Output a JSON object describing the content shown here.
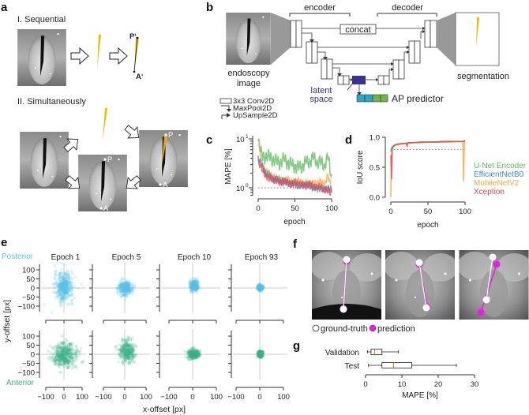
{
  "panel_labels": {
    "a": "a",
    "b": "b",
    "c": "c",
    "d": "d",
    "e": "e",
    "f": "f",
    "g": "g"
  },
  "panel_a": {
    "sequential_title": "I. Sequential",
    "simultaneous_title": "II. Simultaneously",
    "p_prime": "P‘",
    "a_prime": "A‘",
    "p": "P",
    "a": "A"
  },
  "panel_b": {
    "encoder": "encoder",
    "decoder": "decoder",
    "concat": "concat",
    "input_label_1": "endoscopy",
    "input_label_2": "image",
    "output_label": "segmentation",
    "latent_1": "latent",
    "latent_2": "space",
    "ap_predictor": "AP predictor",
    "legend": [
      "3x3 Conv2D",
      "MaxPool2D",
      "UpSample2D"
    ],
    "colors": {
      "latent": "#3b2f8f",
      "ap_a": "#29a8c8",
      "ap_b": "#6ab74a",
      "segmentation": "#f5b800"
    }
  },
  "colors": {
    "unet": "#5cb85c",
    "efficientnet": "#3a8fd0",
    "mobilenet": "#f7a34a",
    "xception": "#e2474b",
    "posterior": "#5bc3eb",
    "anterior": "#3cb08a",
    "prediction": "#e61ee6"
  },
  "chart_data": [
    {
      "id": "c",
      "type": "line",
      "xlabel": "epoch",
      "ylabel": "MAPE [%]",
      "yscale": "log",
      "ylim": [
        0.6,
        10
      ],
      "xlim": [
        0,
        100
      ],
      "xticks": [
        "0",
        "50",
        "100"
      ],
      "yticks": [
        {
          "value": 10,
          "base": "10",
          "exp": "1"
        },
        {
          "value": 1,
          "base": "10",
          "exp": "0"
        }
      ],
      "reference_line": 1,
      "x": [
        0,
        5,
        10,
        15,
        20,
        25,
        30,
        35,
        40,
        45,
        50,
        55,
        60,
        65,
        70,
        75,
        80,
        85,
        90,
        95,
        100
      ],
      "series": [
        {
          "name": "U-Net Encoder",
          "color_key": "unet",
          "values": [
            9,
            5,
            4,
            5,
            3.5,
            4,
            3,
            4.5,
            3,
            3.5,
            2.5,
            3,
            2.5,
            4,
            3,
            5,
            3,
            4,
            2.5,
            5,
            1.5
          ]
        },
        {
          "name": "EfficientNetB0",
          "color_key": "efficientnet",
          "values": [
            4,
            3,
            2,
            1.8,
            1.5,
            1.5,
            1.4,
            1.3,
            1.3,
            1.2,
            1.2,
            1.1,
            1.1,
            1.2,
            1.1,
            1.0,
            1.0,
            1.0,
            0.9,
            1.0,
            0.9
          ]
        },
        {
          "name": "MobileNetV2",
          "color_key": "mobilenet",
          "values": [
            9,
            3,
            2.2,
            2,
            1.7,
            1.6,
            1.5,
            1.4,
            1.5,
            1.3,
            1.3,
            1.4,
            1.2,
            1.3,
            1.2,
            1.3,
            1.2,
            1.4,
            1.1,
            1.8,
            1.0
          ]
        },
        {
          "name": "Xception",
          "color_key": "xception",
          "values": [
            3.5,
            2.5,
            1.8,
            1.6,
            1.5,
            1.4,
            1.3,
            1.4,
            1.3,
            1.2,
            1.3,
            1.2,
            1.2,
            1.1,
            1.2,
            1.1,
            1.0,
            1.1,
            0.9,
            0.9,
            0.8
          ]
        }
      ]
    },
    {
      "id": "d",
      "type": "line",
      "xlabel": "epoch",
      "ylabel": "IoU score",
      "ylim": [
        0,
        1
      ],
      "xlim": [
        0,
        100
      ],
      "xticks": [
        "0",
        "50",
        "100"
      ],
      "yticks": [
        "0.0",
        "0.5",
        "1.0"
      ],
      "reference_line": 0.8,
      "legend": "right",
      "x": [
        0,
        1,
        2,
        5,
        10,
        20,
        22,
        23,
        30,
        40,
        50,
        60,
        70,
        80,
        90,
        97,
        98,
        99,
        100
      ],
      "series": [
        {
          "name": "U-Net Encoder",
          "color_key": "unet",
          "values": [
            0.75,
            0.8,
            0.83,
            0.86,
            0.88,
            0.9,
            0.9,
            0.9,
            0.91,
            0.91,
            0.92,
            0.92,
            0.92,
            0.93,
            0.93,
            0.93,
            0.93,
            0.93,
            0.93
          ]
        },
        {
          "name": "EfficientNetB0",
          "color_key": "efficientnet",
          "values": [
            0.78,
            0.82,
            0.84,
            0.87,
            0.89,
            0.9,
            0.9,
            0.91,
            0.91,
            0.92,
            0.92,
            0.92,
            0.93,
            0.93,
            0.93,
            0.93,
            0.93,
            0.94,
            0.94
          ]
        },
        {
          "name": "MobileNetV2",
          "color_key": "mobilenet",
          "values": [
            0.0,
            0.75,
            0.82,
            0.86,
            0.88,
            0.9,
            0.9,
            0.9,
            0.91,
            0.91,
            0.92,
            0.92,
            0.92,
            0.92,
            0.93,
            0.93,
            0.27,
            0.9,
            0.93
          ]
        },
        {
          "name": "Xception",
          "color_key": "xception",
          "values": [
            0.7,
            0.3,
            0.83,
            0.87,
            0.89,
            0.9,
            0.85,
            0.91,
            0.91,
            0.92,
            0.92,
            0.92,
            0.93,
            0.93,
            0.93,
            0.93,
            0.93,
            0.94,
            0.94
          ]
        }
      ]
    },
    {
      "id": "e",
      "type": "scatter",
      "xlabel": "x-offset [px]",
      "ylabel": "y-offset [px]",
      "xlim": [
        -100,
        100
      ],
      "ylim": [
        -100,
        100
      ],
      "xticks": [
        "−100",
        "0",
        "100"
      ],
      "yticks": [
        "100",
        "50",
        "0",
        "−50",
        "−100"
      ],
      "columns": [
        "Epoch 1",
        "Epoch 5",
        "Epoch 10",
        "Epoch 93"
      ],
      "rows": [
        {
          "name": "Posterior",
          "color_key": "posterior",
          "spread_std_px": [
            {
              "sx": 25,
              "sy": 40
            },
            {
              "sx": 16,
              "sy": 20
            },
            {
              "sx": 9,
              "sy": 14
            },
            {
              "sx": 5,
              "sy": 7
            }
          ],
          "center": [
            {
              "x": 0,
              "y": 5
            },
            {
              "x": 3,
              "y": 0
            },
            {
              "x": 6,
              "y": 12
            },
            {
              "x": 2,
              "y": 2
            }
          ]
        },
        {
          "name": "Anterior",
          "color_key": "anterior",
          "spread_std_px": [
            {
              "sx": 35,
              "sy": 32
            },
            {
              "sx": 18,
              "sy": 30
            },
            {
              "sx": 12,
              "sy": 13
            },
            {
              "sx": 5,
              "sy": 9
            }
          ],
          "center": [
            {
              "x": 5,
              "y": -5
            },
            {
              "x": 12,
              "y": 15
            },
            {
              "x": 2,
              "y": 0
            },
            {
              "x": 2,
              "y": 0
            }
          ]
        }
      ]
    },
    {
      "id": "g",
      "type": "box",
      "xlabel": "MAPE [%]",
      "xlim": [
        0,
        30
      ],
      "xticks": [
        "0",
        "10",
        "20",
        "30"
      ],
      "boxes": [
        {
          "name": "Validation",
          "min": 0.5,
          "q1": 1.5,
          "median": 2.5,
          "q3": 4.5,
          "max": 9
        },
        {
          "name": "Test",
          "min": 0.8,
          "q1": 4.5,
          "median": 7.7,
          "q3": 12.7,
          "max": 25
        }
      ]
    }
  ],
  "panel_f": {
    "legend_gt": "ground-truth",
    "legend_pred": "prediction"
  }
}
